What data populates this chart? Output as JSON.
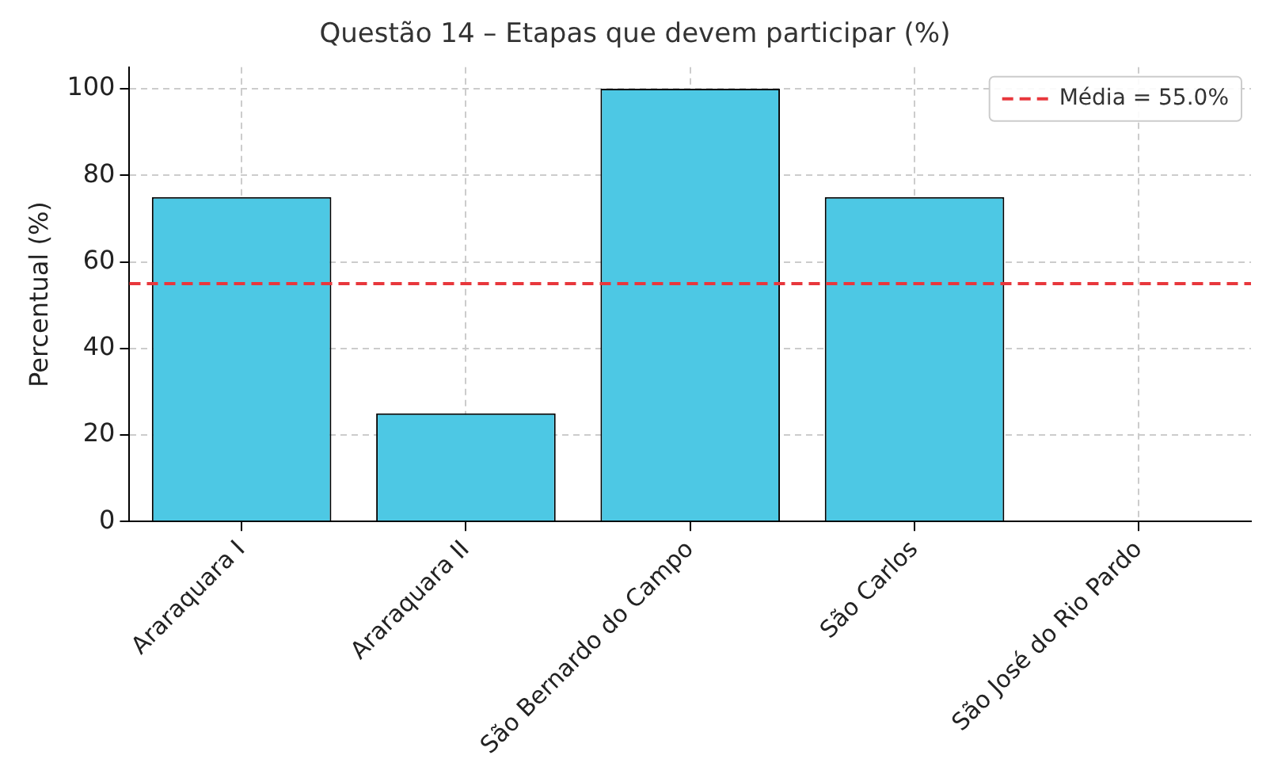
{
  "chart_data": {
    "type": "bar",
    "title": "Questão 14 – Etapas que devem participar (%)",
    "ylabel": "Percentual (%)",
    "categories": [
      "Araraquara I",
      "Araraquara II",
      "São Bernardo do Campo",
      "São Carlos",
      "São José do Rio Pardo"
    ],
    "values": [
      75,
      25,
      100,
      75,
      0
    ],
    "color": "#4dc8e4",
    "ylim": [
      0,
      105
    ],
    "yticks": [
      0,
      20,
      40,
      60,
      80,
      100
    ],
    "grid": true,
    "legend": "top right",
    "ref_lines": [
      {
        "axis": "y",
        "value": 55,
        "label": "Média = 55.0%",
        "color": "#e8373c",
        "line_style": "dashed"
      }
    ]
  }
}
